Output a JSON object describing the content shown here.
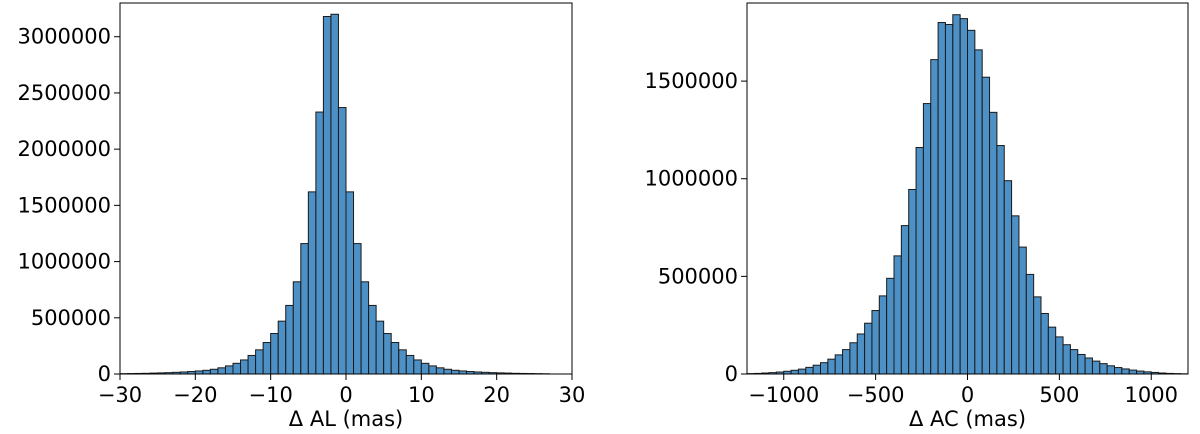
{
  "colors": {
    "bar_fill": "#4c90c5",
    "bar_edge": "#1a1a1a",
    "axis": "#000000",
    "background": "#ffffff"
  },
  "chart_data": [
    {
      "type": "bar",
      "subtype": "histogram",
      "title": "",
      "xlabel": "Δ AL (mas)",
      "ylabel": "",
      "xlim": [
        -30,
        30
      ],
      "ylim": [
        0,
        3300000
      ],
      "grid": false,
      "xticks": [
        -30,
        -20,
        -10,
        0,
        10,
        20,
        30
      ],
      "xtick_labels": [
        "−30",
        "−20",
        "−10",
        "0",
        "10",
        "20",
        "30"
      ],
      "yticks": [
        0,
        500000,
        1000000,
        1500000,
        2000000,
        2500000,
        3000000
      ],
      "ytick_labels": [
        "0",
        "500000",
        "1000000",
        "1500000",
        "2000000",
        "2500000",
        "3000000"
      ],
      "bin_edges_start": -30,
      "bin_width": 1,
      "values": [
        3000,
        4000,
        5000,
        6000,
        8000,
        10000,
        12000,
        15000,
        18000,
        22000,
        27000,
        33000,
        42000,
        55000,
        72000,
        95000,
        125000,
        165000,
        215000,
        280000,
        360000,
        470000,
        610000,
        820000,
        1160000,
        1620000,
        2330000,
        3180000,
        3200000,
        2370000,
        1620000,
        1160000,
        820000,
        610000,
        470000,
        360000,
        280000,
        215000,
        165000,
        125000,
        95000,
        72000,
        55000,
        42000,
        33000,
        27000,
        22000,
        18000,
        15000,
        12000,
        10000,
        8000,
        6000,
        5000,
        4000,
        3000,
        2000
      ]
    },
    {
      "type": "bar",
      "subtype": "histogram",
      "title": "",
      "xlabel": "Δ AC (mas)",
      "ylabel": "",
      "xlim": [
        -1200,
        1200
      ],
      "ylim": [
        0,
        1900000
      ],
      "grid": false,
      "xticks": [
        -1000,
        -500,
        0,
        500,
        1000
      ],
      "xtick_labels": [
        "−1000",
        "−500",
        "0",
        "500",
        "1000"
      ],
      "yticks": [
        0,
        500000,
        1000000,
        1500000
      ],
      "ytick_labels": [
        "0",
        "500000",
        "1000000",
        "1500000"
      ],
      "bin_edges_start": -1200,
      "bin_width": 40,
      "values": [
        2000,
        3000,
        5000,
        7000,
        10000,
        14000,
        19000,
        25000,
        34000,
        45000,
        58000,
        76000,
        98000,
        125000,
        160000,
        205000,
        260000,
        325000,
        400000,
        490000,
        605000,
        760000,
        945000,
        1160000,
        1385000,
        1610000,
        1800000,
        1790000,
        1840000,
        1820000,
        1760000,
        1660000,
        1520000,
        1340000,
        1170000,
        990000,
        810000,
        650000,
        510000,
        395000,
        310000,
        240000,
        190000,
        150000,
        125000,
        100000,
        82000,
        66000,
        53000,
        42000,
        33000,
        26000,
        20000,
        15000,
        11000,
        8000,
        5000,
        3000,
        2000,
        1000
      ]
    }
  ]
}
